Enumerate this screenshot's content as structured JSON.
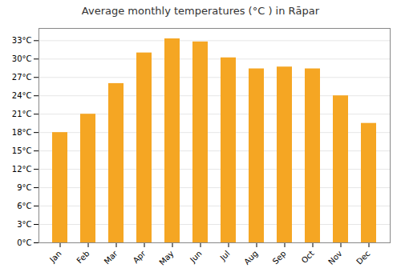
{
  "chart_data": {
    "type": "bar",
    "title": "Average monthly temperatures (°C ) in Rāpar",
    "categories": [
      "Jan",
      "Feb",
      "Mar",
      "Apr",
      "May",
      "Jun",
      "Jul",
      "Aug",
      "Sep",
      "Oct",
      "Nov",
      "Dec"
    ],
    "values": [
      18.0,
      21.0,
      26.0,
      31.0,
      33.3,
      32.8,
      30.2,
      28.4,
      28.7,
      28.4,
      24.0,
      19.5
    ],
    "color": "#F5A623",
    "ylim": [
      0,
      35
    ],
    "yticks": [
      {
        "value": 0,
        "label": "0°C"
      },
      {
        "value": 3,
        "label": "3°C"
      },
      {
        "value": 6,
        "label": "6°C"
      },
      {
        "value": 9,
        "label": "9°C"
      },
      {
        "value": 12,
        "label": "12°C"
      },
      {
        "value": 15,
        "label": "15°C"
      },
      {
        "value": 18,
        "label": "18°C"
      },
      {
        "value": 21,
        "label": "21°C"
      },
      {
        "value": 24,
        "label": "24°C"
      },
      {
        "value": 27,
        "label": "27°C"
      },
      {
        "value": 30,
        "label": "30°C"
      },
      {
        "value": 33,
        "label": "33°C"
      }
    ],
    "grid": true
  }
}
